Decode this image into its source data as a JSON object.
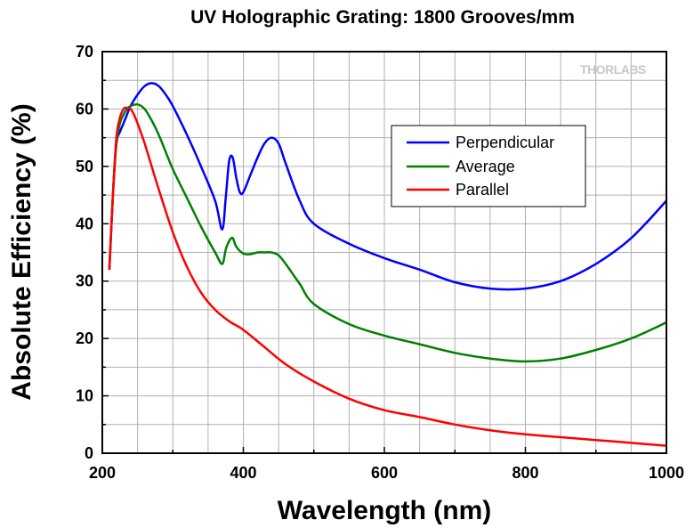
{
  "chart_data": {
    "type": "line",
    "title": "UV Holographic Grating: 1800 Grooves/mm",
    "xlabel": "Wavelength (nm)",
    "ylabel": "Absolute Efficiency (%)",
    "xlim": [
      200,
      1000
    ],
    "ylim": [
      0,
      70
    ],
    "xticks": [
      200,
      400,
      600,
      800,
      1000
    ],
    "yticks": [
      0,
      10,
      20,
      30,
      40,
      50,
      60,
      70
    ],
    "grid": true,
    "legend_position": "upper-right",
    "watermark": "THORLABS",
    "series": [
      {
        "name": "Perpendicular",
        "color": "#0000ff",
        "x": [
          210,
          215,
          220,
          225,
          230,
          235,
          240,
          250,
          260,
          270,
          280,
          290,
          300,
          320,
          340,
          360,
          370,
          375,
          380,
          385,
          390,
          395,
          400,
          410,
          420,
          430,
          440,
          450,
          460,
          480,
          500,
          550,
          600,
          650,
          700,
          750,
          800,
          850,
          900,
          950,
          1000
        ],
        "y": [
          32.0,
          45.0,
          54.0,
          56.0,
          57.5,
          59.0,
          60.5,
          62.5,
          64.0,
          64.5,
          64.0,
          62.5,
          60.5,
          55.5,
          50.0,
          44.0,
          39.0,
          44.5,
          51.0,
          51.5,
          48.0,
          45.5,
          45.5,
          48.5,
          51.5,
          54.0,
          55.0,
          54.0,
          50.5,
          44.0,
          40.0,
          36.5,
          34.0,
          32.0,
          29.8,
          28.7,
          28.7,
          30.0,
          33.0,
          37.5,
          44.0
        ]
      },
      {
        "name": "Average",
        "color": "#008000",
        "x": [
          210,
          215,
          220,
          225,
          230,
          235,
          240,
          250,
          260,
          270,
          280,
          290,
          300,
          320,
          340,
          360,
          370,
          375,
          380,
          385,
          390,
          400,
          410,
          420,
          430,
          440,
          450,
          460,
          480,
          500,
          550,
          600,
          650,
          700,
          750,
          800,
          850,
          900,
          950,
          1000
        ],
        "y": [
          32.0,
          45.0,
          54.0,
          57.5,
          59.0,
          60.0,
          60.5,
          60.8,
          60.0,
          58.0,
          55.5,
          52.5,
          49.5,
          44.5,
          39.5,
          35.0,
          33.0,
          35.5,
          37.0,
          37.5,
          36.0,
          34.8,
          34.7,
          35.0,
          35.0,
          35.0,
          34.5,
          33.0,
          29.5,
          26.0,
          22.5,
          20.5,
          19.0,
          17.5,
          16.5,
          16.0,
          16.5,
          18.0,
          20.0,
          22.8
        ]
      },
      {
        "name": "Parallel",
        "color": "#ff0000",
        "x": [
          210,
          215,
          220,
          225,
          230,
          235,
          240,
          245,
          250,
          260,
          270,
          280,
          300,
          320,
          340,
          360,
          380,
          400,
          430,
          460,
          500,
          550,
          600,
          650,
          700,
          750,
          800,
          850,
          900,
          950,
          1000
        ],
        "y": [
          32.0,
          45.0,
          55.0,
          58.5,
          60.0,
          60.2,
          60.0,
          59.0,
          57.5,
          54.0,
          50.0,
          46.0,
          38.5,
          32.5,
          28.0,
          25.0,
          23.0,
          21.5,
          18.5,
          15.5,
          12.5,
          9.5,
          7.5,
          6.3,
          5.0,
          4.0,
          3.3,
          2.8,
          2.3,
          1.8,
          1.3
        ]
      }
    ]
  }
}
